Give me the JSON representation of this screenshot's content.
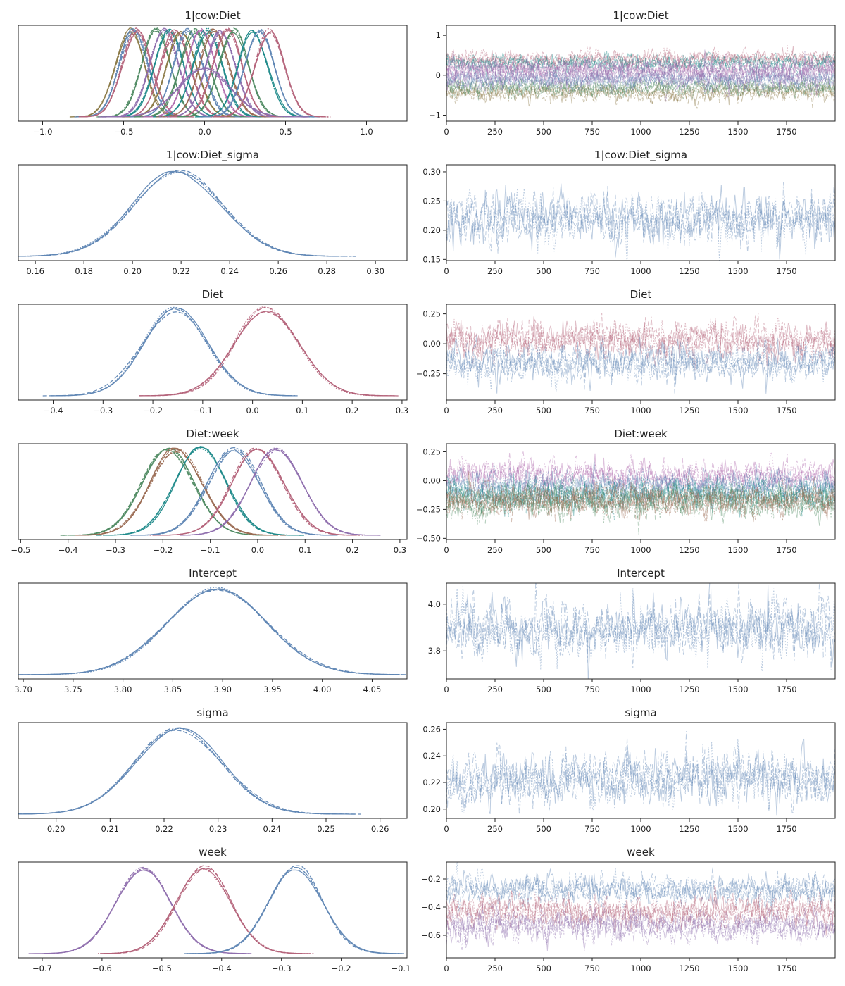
{
  "figure": {
    "type": "arviz-trace-plot",
    "panels_per_row": 2
  },
  "colors": {
    "blue": "#5f86b4",
    "red": "#b4637a",
    "green": "#4f8a62",
    "teal": "#1f8a8a",
    "purple": "#8f6fae",
    "olive": "#8c7a47",
    "pink": "#b06bae",
    "brown": "#9a6a52"
  },
  "chart_data": [
    {
      "type": "line",
      "panel": "density",
      "title": "1|cow:Diet",
      "xlim": [
        -1.15,
        1.25
      ],
      "xticks": [
        -1.0,
        -0.5,
        0.0,
        0.5,
        1.0
      ],
      "yticks": [],
      "series": [
        {
          "color": "olive",
          "mu": -0.46,
          "sd": 0.09
        },
        {
          "color": "blue",
          "mu": -0.44,
          "sd": 0.09
        },
        {
          "color": "red",
          "mu": -0.42,
          "sd": 0.09
        },
        {
          "color": "green",
          "mu": -0.3,
          "sd": 0.09
        },
        {
          "color": "purple",
          "mu": -0.25,
          "sd": 0.09
        },
        {
          "color": "teal",
          "mu": -0.22,
          "sd": 0.09
        },
        {
          "color": "red",
          "mu": -0.18,
          "sd": 0.09
        },
        {
          "color": "olive",
          "mu": -0.14,
          "sd": 0.09
        },
        {
          "color": "blue",
          "mu": -0.1,
          "sd": 0.09
        },
        {
          "color": "green",
          "mu": -0.06,
          "sd": 0.09
        },
        {
          "color": "pink",
          "mu": -0.02,
          "sd": 0.09
        },
        {
          "color": "teal",
          "mu": 0.02,
          "sd": 0.09
        },
        {
          "color": "brown",
          "mu": 0.06,
          "sd": 0.09
        },
        {
          "color": "purple",
          "mu": 0.1,
          "sd": 0.09
        },
        {
          "color": "red",
          "mu": 0.14,
          "sd": 0.09
        },
        {
          "color": "green",
          "mu": 0.18,
          "sd": 0.09
        },
        {
          "color": "teal",
          "mu": 0.3,
          "sd": 0.09
        },
        {
          "color": "blue",
          "mu": 0.34,
          "sd": 0.09
        },
        {
          "color": "red",
          "mu": 0.4,
          "sd": 0.09
        },
        {
          "color": "purple",
          "mu": 0.0,
          "sd": 0.16
        }
      ]
    },
    {
      "type": "line",
      "panel": "trace",
      "title": "1|cow:Diet",
      "xlim": [
        0,
        2000
      ],
      "xticks": [
        0,
        250,
        500,
        750,
        1000,
        1250,
        1500,
        1750
      ],
      "ylim": [
        -1.15,
        1.25
      ],
      "yticks": [
        -1,
        0,
        1
      ],
      "series": [
        {
          "color": "red",
          "mu": 0.4,
          "sd": 0.09
        },
        {
          "color": "olive",
          "mu": -0.44,
          "sd": 0.09
        },
        {
          "color": "green",
          "mu": -0.3,
          "sd": 0.09
        },
        {
          "color": "teal",
          "mu": 0.3,
          "sd": 0.09
        },
        {
          "color": "blue",
          "mu": -0.1,
          "sd": 0.09
        },
        {
          "color": "pink",
          "mu": 0.15,
          "sd": 0.09
        },
        {
          "color": "purple",
          "mu": 0.0,
          "sd": 0.16
        }
      ]
    },
    {
      "type": "line",
      "panel": "density",
      "title": "1|cow:Diet_sigma",
      "xlim": [
        0.153,
        0.313
      ],
      "xticks": [
        0.16,
        0.18,
        0.2,
        0.22,
        0.24,
        0.26,
        0.28,
        0.3
      ],
      "yticks": [],
      "series": [
        {
          "color": "blue",
          "mu": 0.219,
          "sd": 0.018
        }
      ]
    },
    {
      "type": "line",
      "panel": "trace",
      "title": "1|cow:Diet_sigma",
      "xlim": [
        0,
        2000
      ],
      "xticks": [
        0,
        250,
        500,
        750,
        1000,
        1250,
        1500,
        1750
      ],
      "ylim": [
        0.148,
        0.312
      ],
      "yticks": [
        0.15,
        0.2,
        0.25,
        0.3
      ],
      "series": [
        {
          "color": "blue",
          "mu": 0.219,
          "sd": 0.018
        }
      ]
    },
    {
      "type": "line",
      "panel": "density",
      "title": "Diet",
      "xlim": [
        -0.47,
        0.31
      ],
      "xticks": [
        -0.4,
        -0.3,
        -0.2,
        -0.1,
        0.0,
        0.1,
        0.2,
        0.3
      ],
      "yticks": [],
      "series": [
        {
          "color": "blue",
          "mu": -0.155,
          "sd": 0.065
        },
        {
          "color": "red",
          "mu": 0.03,
          "sd": 0.065
        }
      ]
    },
    {
      "type": "line",
      "panel": "trace",
      "title": "Diet",
      "xlim": [
        0,
        2000
      ],
      "xticks": [
        0,
        250,
        500,
        750,
        1000,
        1250,
        1500,
        1750
      ],
      "ylim": [
        -0.47,
        0.33
      ],
      "yticks": [
        -0.25,
        0.0,
        0.25
      ],
      "series": [
        {
          "color": "red",
          "mu": 0.03,
          "sd": 0.065
        },
        {
          "color": "blue",
          "mu": -0.155,
          "sd": 0.065
        }
      ]
    },
    {
      "type": "line",
      "panel": "density",
      "title": "Diet:week",
      "xlim": [
        -0.505,
        0.315
      ],
      "xticks": [
        -0.5,
        -0.4,
        -0.3,
        -0.2,
        -0.1,
        0.0,
        0.1,
        0.2,
        0.3
      ],
      "yticks": [],
      "series": [
        {
          "color": "green",
          "mu": -0.19,
          "sd": 0.055
        },
        {
          "color": "brown",
          "mu": -0.17,
          "sd": 0.055
        },
        {
          "color": "teal",
          "mu": -0.12,
          "sd": 0.055
        },
        {
          "color": "blue",
          "mu": -0.05,
          "sd": 0.055
        },
        {
          "color": "red",
          "mu": 0.0,
          "sd": 0.055
        },
        {
          "color": "purple",
          "mu": 0.04,
          "sd": 0.055
        }
      ]
    },
    {
      "type": "line",
      "panel": "trace",
      "title": "Diet:week",
      "xlim": [
        0,
        2000
      ],
      "xticks": [
        0,
        250,
        500,
        750,
        1000,
        1250,
        1500,
        1750
      ],
      "ylim": [
        -0.51,
        0.32
      ],
      "yticks": [
        -0.5,
        -0.25,
        0.0,
        0.25
      ],
      "series": [
        {
          "color": "pink",
          "mu": 0.04,
          "sd": 0.055
        },
        {
          "color": "blue",
          "mu": -0.05,
          "sd": 0.055
        },
        {
          "color": "teal",
          "mu": -0.12,
          "sd": 0.055
        },
        {
          "color": "green",
          "mu": -0.19,
          "sd": 0.055
        },
        {
          "color": "brown",
          "mu": -0.17,
          "sd": 0.055
        }
      ]
    },
    {
      "type": "line",
      "panel": "density",
      "title": "Intercept",
      "xlim": [
        3.695,
        4.085
      ],
      "xticks": [
        3.7,
        3.75,
        3.8,
        3.85,
        3.9,
        3.95,
        4.0,
        4.05
      ],
      "yticks": [],
      "series": [
        {
          "color": "blue",
          "mu": 3.895,
          "sd": 0.05
        }
      ]
    },
    {
      "type": "line",
      "panel": "trace",
      "title": "Intercept",
      "xlim": [
        0,
        2000
      ],
      "xticks": [
        0,
        250,
        500,
        750,
        1000,
        1250,
        1500,
        1750
      ],
      "ylim": [
        3.68,
        4.09
      ],
      "yticks": [
        3.8,
        4.0
      ],
      "series": [
        {
          "color": "blue",
          "mu": 3.895,
          "sd": 0.05
        }
      ]
    },
    {
      "type": "line",
      "panel": "density",
      "title": "sigma",
      "xlim": [
        0.193,
        0.265
      ],
      "xticks": [
        0.2,
        0.21,
        0.22,
        0.23,
        0.24,
        0.25,
        0.26
      ],
      "yticks": [],
      "series": [
        {
          "color": "blue",
          "mu": 0.2225,
          "sd": 0.008
        }
      ]
    },
    {
      "type": "line",
      "panel": "trace",
      "title": "sigma",
      "xlim": [
        0,
        2000
      ],
      "xticks": [
        0,
        250,
        500,
        750,
        1000,
        1250,
        1500,
        1750
      ],
      "ylim": [
        0.193,
        0.265
      ],
      "yticks": [
        0.2,
        0.22,
        0.24,
        0.26
      ],
      "series": [
        {
          "color": "blue",
          "mu": 0.2225,
          "sd": 0.008
        }
      ]
    },
    {
      "type": "line",
      "panel": "density",
      "title": "week",
      "xlim": [
        -0.74,
        -0.09
      ],
      "xticks": [
        -0.7,
        -0.6,
        -0.5,
        -0.4,
        -0.3,
        -0.2,
        -0.1
      ],
      "yticks": [],
      "series": [
        {
          "color": "purple",
          "mu": -0.53,
          "sd": 0.045
        },
        {
          "color": "red",
          "mu": -0.43,
          "sd": 0.045
        },
        {
          "color": "blue",
          "mu": -0.275,
          "sd": 0.045
        }
      ]
    },
    {
      "type": "line",
      "panel": "trace",
      "title": "week",
      "xlim": [
        0,
        2000
      ],
      "xticks": [
        0,
        250,
        500,
        750,
        1000,
        1250,
        1500,
        1750
      ],
      "ylim": [
        -0.76,
        -0.08
      ],
      "yticks": [
        -0.6,
        -0.4,
        -0.2
      ],
      "series": [
        {
          "color": "blue",
          "mu": -0.275,
          "sd": 0.045
        },
        {
          "color": "red",
          "mu": -0.43,
          "sd": 0.045
        },
        {
          "color": "purple",
          "mu": -0.53,
          "sd": 0.045
        }
      ]
    }
  ]
}
